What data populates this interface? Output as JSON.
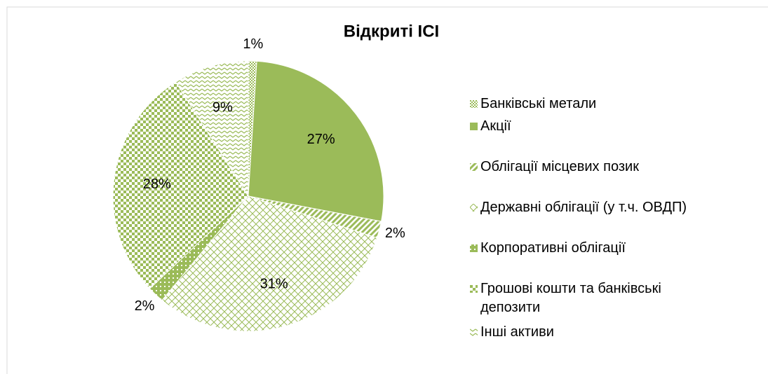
{
  "chart_data": {
    "type": "pie",
    "title": "Відкриті ІСІ",
    "categories": [
      "Банківські метали",
      "Акції",
      "Облігації місцевих позик",
      "Державні облігації (у т.ч. ОВДП)",
      "Корпоративні облігації",
      "Грошові кошти та банківські депозити",
      "Інші активи"
    ],
    "values": [
      1,
      27,
      2,
      31,
      2,
      28,
      9
    ],
    "value_labels": [
      "1%",
      "27%",
      "2%",
      "31%",
      "2%",
      "28%",
      "9%"
    ],
    "color": "#9bbb59",
    "legend": "right"
  }
}
